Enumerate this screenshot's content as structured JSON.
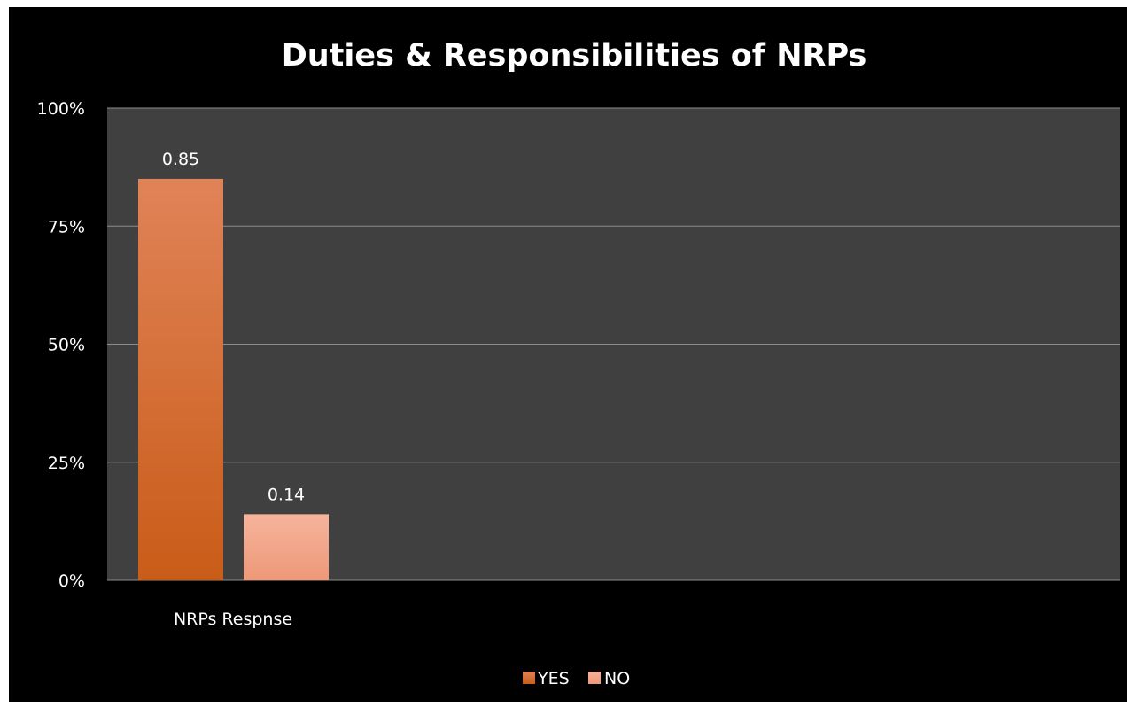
{
  "chart_data": {
    "type": "bar",
    "title": "Duties & Responsibilities of NRPs",
    "categories": [
      "NRPs Respnse"
    ],
    "series": [
      {
        "name": "YES",
        "values": [
          0.85
        ],
        "data_labels": [
          "0.85"
        ]
      },
      {
        "name": "NO",
        "values": [
          0.14
        ],
        "data_labels": [
          "0.14"
        ]
      }
    ],
    "xlabel": "",
    "ylabel": "",
    "ylim": [
      0,
      1
    ],
    "yticks": [
      {
        "value": 0,
        "label": "0%"
      },
      {
        "value": 0.25,
        "label": "25%"
      },
      {
        "value": 0.5,
        "label": "50%"
      },
      {
        "value": 0.75,
        "label": "75%"
      },
      {
        "value": 1,
        "label": "100%"
      }
    ],
    "grid": true,
    "legend_position": "bottom",
    "colors": {
      "background": "#000000",
      "plot_area": "#404040",
      "gridline": "#8c8c8c",
      "yes_top": "#e08358",
      "yes_bottom": "#c95c18",
      "no_top": "#f6b49c",
      "no_bottom": "#ee9878",
      "text": "#ffffff"
    }
  }
}
